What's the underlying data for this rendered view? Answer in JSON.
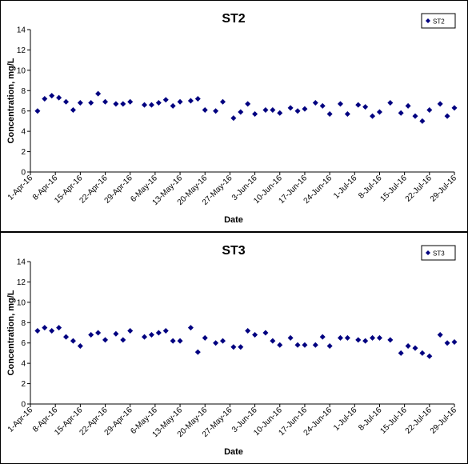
{
  "chart_data": [
    {
      "type": "scatter",
      "title": "ST2",
      "x_label": "Date",
      "y_label": "Concentration, mg/L",
      "legend": "top-right",
      "grid": false,
      "xlim": [
        "1-Apr-16",
        "29-Jul-16"
      ],
      "xticks": [
        "1-Apr-16",
        "8-Apr-16",
        "15-Apr-16",
        "22-Apr-16",
        "29-Apr-16",
        "6-May-16",
        "13-May-16",
        "20-May-16",
        "27-May-16",
        "3-Jun-16",
        "10-Jun-16",
        "17-Jun-16",
        "24-Jun-16",
        "1-Jul-16",
        "8-Jul-16",
        "15-Jul-16",
        "22-Jul-16",
        "29-Jul-16"
      ],
      "ylim": [
        0,
        14
      ],
      "yticks": [
        0,
        2,
        4,
        6,
        8,
        10,
        12,
        14
      ],
      "series": [
        {
          "name": "ST2",
          "color": "#000080",
          "x": [
            "3-Apr-16",
            "5-Apr-16",
            "7-Apr-16",
            "9-Apr-16",
            "11-Apr-16",
            "13-Apr-16",
            "15-Apr-16",
            "18-Apr-16",
            "20-Apr-16",
            "22-Apr-16",
            "25-Apr-16",
            "27-Apr-16",
            "29-Apr-16",
            "3-May-16",
            "5-May-16",
            "7-May-16",
            "9-May-16",
            "11-May-16",
            "13-May-16",
            "16-May-16",
            "18-May-16",
            "20-May-16",
            "23-May-16",
            "25-May-16",
            "28-May-16",
            "30-May-16",
            "1-Jun-16",
            "3-Jun-16",
            "6-Jun-16",
            "8-Jun-16",
            "10-Jun-16",
            "13-Jun-16",
            "15-Jun-16",
            "17-Jun-16",
            "20-Jun-16",
            "22-Jun-16",
            "24-Jun-16",
            "27-Jun-16",
            "29-Jun-16",
            "2-Jul-16",
            "4-Jul-16",
            "6-Jul-16",
            "8-Jul-16",
            "11-Jul-16",
            "14-Jul-16",
            "16-Jul-16",
            "18-Jul-16",
            "20-Jul-16",
            "22-Jul-16",
            "25-Jul-16",
            "27-Jul-16",
            "29-Jul-16"
          ],
          "values": [
            6.0,
            7.2,
            7.5,
            7.3,
            6.9,
            6.1,
            6.8,
            6.8,
            7.7,
            6.9,
            6.7,
            6.7,
            6.9,
            6.6,
            6.6,
            6.8,
            7.1,
            6.5,
            6.9,
            7.0,
            7.2,
            6.1,
            6.0,
            6.9,
            5.3,
            5.9,
            6.7,
            5.7,
            6.1,
            6.1,
            5.8,
            6.3,
            6.0,
            6.2,
            6.8,
            6.5,
            5.7,
            6.7,
            5.7,
            6.6,
            6.4,
            5.5,
            5.9,
            6.8,
            5.8,
            6.5,
            5.5,
            5.0,
            6.1,
            6.7,
            5.5,
            6.3
          ]
        }
      ]
    },
    {
      "type": "scatter",
      "title": "ST3",
      "x_label": "Date",
      "y_label": "Concentration, mg/L",
      "legend": "top-right",
      "grid": false,
      "xlim": [
        "1-Apr-16",
        "29-Jul-16"
      ],
      "xticks": [
        "1-Apr-16",
        "8-Apr-16",
        "15-Apr-16",
        "22-Apr-16",
        "29-Apr-16",
        "6-May-16",
        "13-May-16",
        "20-May-16",
        "27-May-16",
        "3-Jun-16",
        "10-Jun-16",
        "17-Jun-16",
        "24-Jun-16",
        "1-Jul-16",
        "8-Jul-16",
        "15-Jul-16",
        "22-Jul-16",
        "29-Jul-16"
      ],
      "ylim": [
        0,
        14
      ],
      "yticks": [
        0,
        2,
        4,
        6,
        8,
        10,
        12,
        14
      ],
      "series": [
        {
          "name": "ST3",
          "color": "#000080",
          "x": [
            "3-Apr-16",
            "5-Apr-16",
            "7-Apr-16",
            "9-Apr-16",
            "11-Apr-16",
            "13-Apr-16",
            "15-Apr-16",
            "18-Apr-16",
            "20-Apr-16",
            "22-Apr-16",
            "25-Apr-16",
            "27-Apr-16",
            "29-Apr-16",
            "3-May-16",
            "5-May-16",
            "7-May-16",
            "9-May-16",
            "11-May-16",
            "13-May-16",
            "16-May-16",
            "18-May-16",
            "20-May-16",
            "23-May-16",
            "25-May-16",
            "28-May-16",
            "30-May-16",
            "1-Jun-16",
            "3-Jun-16",
            "6-Jun-16",
            "8-Jun-16",
            "10-Jun-16",
            "13-Jun-16",
            "15-Jun-16",
            "17-Jun-16",
            "20-Jun-16",
            "22-Jun-16",
            "24-Jun-16",
            "27-Jun-16",
            "29-Jun-16",
            "2-Jul-16",
            "4-Jul-16",
            "6-Jul-16",
            "8-Jul-16",
            "11-Jul-16",
            "14-Jul-16",
            "16-Jul-16",
            "18-Jul-16",
            "20-Jul-16",
            "22-Jul-16",
            "25-Jul-16",
            "27-Jul-16",
            "29-Jul-16"
          ],
          "values": [
            7.2,
            7.5,
            7.2,
            7.5,
            6.6,
            6.2,
            5.7,
            6.8,
            7.0,
            6.3,
            6.9,
            6.3,
            7.2,
            6.6,
            6.8,
            7.0,
            7.2,
            6.2,
            6.2,
            7.5,
            5.1,
            6.5,
            6.0,
            6.2,
            5.6,
            5.6,
            7.2,
            6.8,
            7.0,
            6.2,
            5.8,
            6.5,
            5.8,
            5.8,
            5.8,
            6.6,
            5.7,
            6.5,
            6.5,
            6.3,
            6.2,
            6.5,
            6.5,
            6.3,
            5.0,
            5.7,
            5.5,
            5.0,
            4.7,
            6.8,
            6.0,
            6.1
          ]
        }
      ]
    }
  ]
}
